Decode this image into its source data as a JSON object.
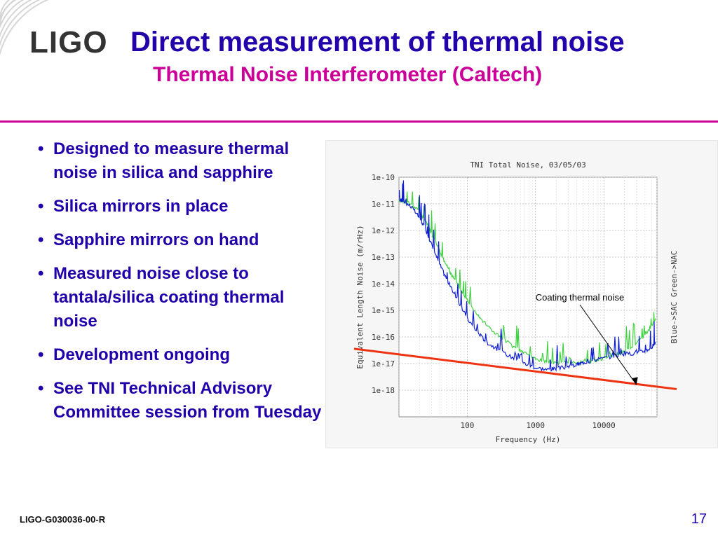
{
  "logo": {
    "text": "LIGO"
  },
  "title": "Direct measurement of thermal noise",
  "subtitle": "Thermal Noise Interferometer (Caltech)",
  "bullets": [
    "Designed to measure thermal noise in silica and sapphire",
    "Silica mirrors in place",
    "Sapphire mirrors on hand",
    "Measured noise close to tantala/silica coating thermal noise",
    "Development ongoing",
    "See TNI Technical Advisory Committee session from Tuesday"
  ],
  "footer": {
    "doc_id": "LIGO-G030036-00-R",
    "page": "17"
  },
  "colors": {
    "title": "#2200aa",
    "subtitle": "#cc0099",
    "divider": "#cc0099",
    "series_blue": "#1020d0",
    "series_green": "#40d040",
    "coating_line": "#ee3311"
  },
  "chart_data": {
    "type": "line",
    "title": "TNI Total Noise, 03/05/03",
    "xlabel": "Frequency (Hz)",
    "ylabel": "Equivalent Length Noise (m/rHz)",
    "right_label": "Blue->SAC  Green->NAC",
    "x_scale": "log",
    "y_scale": "log",
    "xlim": [
      10,
      60000
    ],
    "ylim": [
      1e-19,
      1e-10
    ],
    "x_ticks": [
      "100",
      "1000",
      "10000"
    ],
    "y_ticks": [
      "1e-10",
      "1e-11",
      "1e-12",
      "1e-13",
      "1e-14",
      "1e-15",
      "1e-16",
      "1e-17",
      "1e-18"
    ],
    "grid": true,
    "series": [
      {
        "name": "Blue->SAC",
        "color": "#1020d0",
        "x": [
          10,
          12,
          15,
          20,
          25,
          30,
          40,
          50,
          60,
          80,
          100,
          150,
          200,
          300,
          500,
          700,
          1000,
          1500,
          2000,
          3000,
          4000,
          5000,
          7000,
          10000,
          15000,
          20000,
          30000,
          40000,
          50000,
          57000
        ],
        "y": [
          1.5e-11,
          1.2e-11,
          8e-12,
          3e-12,
          1e-12,
          3e-13,
          5e-14,
          1.5e-14,
          6e-15,
          1.5e-15,
          5e-16,
          1.2e-16,
          6e-17,
          3e-17,
          1.5e-17,
          1e-17,
          7e-18,
          6e-18,
          6.5e-18,
          7.5e-18,
          9e-18,
          1.1e-17,
          1.3e-17,
          1.6e-17,
          2e-17,
          2.3e-17,
          2.5e-17,
          3e-17,
          4e-17,
          6e-17
        ]
      },
      {
        "name": "Green->NAC",
        "color": "#40d040",
        "x": [
          10,
          12,
          15,
          20,
          25,
          30,
          40,
          50,
          60,
          80,
          100,
          150,
          200,
          300,
          500,
          700,
          1000,
          1500,
          2000,
          3000,
          5000,
          7000,
          10000,
          15000,
          20000,
          30000,
          40000,
          50000,
          57000
        ],
        "y": [
          1.4e-11,
          1.2e-11,
          1e-11,
          5e-12,
          2e-12,
          8e-13,
          1.5e-13,
          5e-14,
          2e-14,
          6e-15,
          2.5e-15,
          6e-16,
          2.5e-16,
          1e-16,
          4e-17,
          2.5e-17,
          1.5e-17,
          1.2e-17,
          1.1e-17,
          1e-17,
          1.1e-17,
          1.3e-17,
          1.6e-17,
          2.2e-17,
          3e-17,
          6e-17,
          1.2e-16,
          2.5e-16,
          5e-16
        ]
      }
    ],
    "overlay_line": {
      "color": "#ee3311",
      "x": [
        10,
        60000
      ],
      "y": [
        2.5e-17,
        1.4e-18
      ]
    },
    "annotation": {
      "text": "Coating thermal noise",
      "arrow_to": {
        "x": 30000,
        "y": 1.6e-18
      }
    }
  }
}
